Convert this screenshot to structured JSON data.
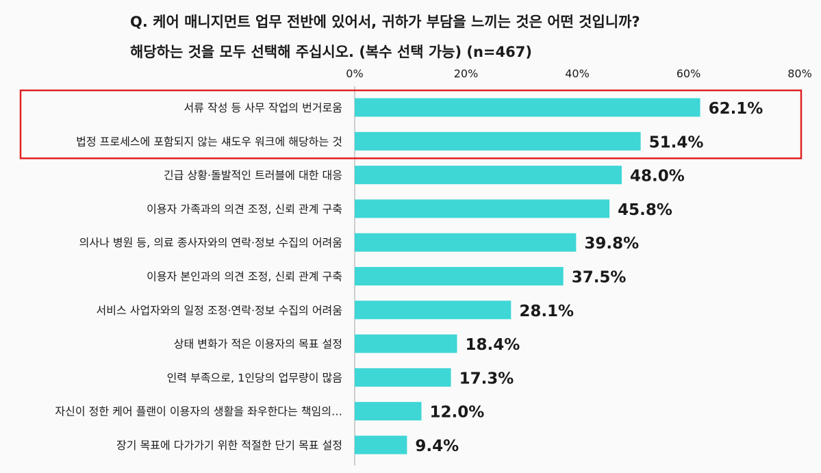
{
  "title_lines": [
    "Q. 케어 매니지먼트 업무 전반에 있어서, 귀하가 부담을 느끼는 것은 어떤 것입니까?",
    "해당하는 것을 모두 선택해 주십시오. (복수 선택 가능) (n=467)"
  ],
  "colors": {
    "bar": "#3fd6d6",
    "highlight_border": "#e02020",
    "axis_line": "#bfbfbf"
  },
  "chart_data": {
    "type": "bar",
    "orientation": "horizontal",
    "categories": [
      "서류 작성 등 사무 작업의 번거로움",
      "법정 프로세스에 포함되지 않는 섀도우 워크에 해당하는 것",
      "긴급 상황·돌발적인 트러블에 대한 대응",
      "이용자 가족과의 의견 조정, 신뢰 관계 구축",
      "의사나 병원 등, 의료 종사자와의 연락·정보 수집의 어려움",
      "이용자 본인과의 의견 조정, 신뢰 관계 구축",
      "서비스 사업자와의 일정 조정·연락·정보 수집의 어려움",
      "상태 변화가 적은 이용자의 목표 설정",
      "인력 부족으로, 1인당의 업무량이 많음",
      "자신이 정한 케어 플랜이 이용자의 생활을 좌우한다는 책임의…",
      "장기 목표에 다가가기 위한 적절한 단기 목표 설정"
    ],
    "values": [
      62.1,
      51.4,
      48.0,
      45.8,
      39.8,
      37.5,
      28.1,
      18.4,
      17.3,
      12.0,
      9.4
    ],
    "value_labels": [
      "62.1%",
      "51.4%",
      "48.0%",
      "45.8%",
      "39.8%",
      "37.5%",
      "28.1%",
      "18.4%",
      "17.3%",
      "12.0%",
      "9.4%"
    ],
    "xlim": [
      0,
      80
    ],
    "ticks": [
      0,
      20,
      40,
      60,
      80
    ],
    "tick_labels": [
      "0%",
      "20%",
      "40%",
      "60%",
      "80%"
    ],
    "axis_position": "top",
    "grid": false,
    "highlighted_categories": [
      0,
      1
    ]
  }
}
